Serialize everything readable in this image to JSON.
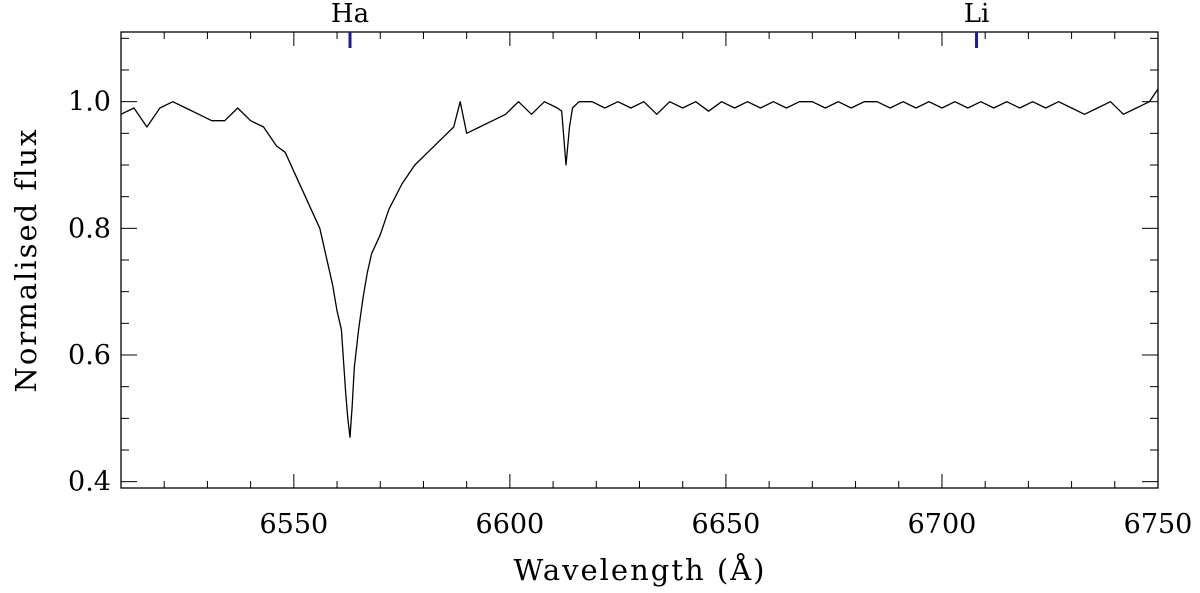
{
  "chart_data": {
    "type": "line",
    "title": "",
    "xlabel": "Wavelength (Å)",
    "ylabel": "Normalised flux",
    "xlim": [
      6510,
      6750
    ],
    "ylim": [
      0.39,
      1.11
    ],
    "x_ticks": [
      6550,
      6600,
      6650,
      6700,
      6750
    ],
    "x_tick_labels": [
      "6550",
      "6600",
      "6650",
      "6700",
      "6750"
    ],
    "x_minor_step": 10,
    "y_ticks": [
      0.4,
      0.6,
      0.8,
      1.0
    ],
    "y_tick_labels": [
      "0.4",
      "0.6",
      "0.8",
      "1.0"
    ],
    "y_minor_step": 0.05,
    "grid": false,
    "line_color": "#000000",
    "marker_color": "#1a1aa6",
    "line_markers": [
      {
        "label": "Ha",
        "x": 6563
      },
      {
        "label": "Li",
        "x": 6708
      }
    ],
    "series": [
      {
        "x": [
          6510,
          6513,
          6516,
          6519,
          6522,
          6525,
          6528,
          6531,
          6534,
          6537,
          6540,
          6543,
          6546,
          6548,
          6550,
          6552,
          6554,
          6556,
          6557,
          6558,
          6559,
          6560,
          6561,
          6562,
          6562.5,
          6563,
          6563.5,
          6564,
          6565,
          6566,
          6567,
          6568,
          6570,
          6572,
          6575,
          6578,
          6581,
          6584,
          6587,
          6588.5,
          6590,
          6593,
          6596,
          6599,
          6602,
          6605,
          6608,
          6611,
          6612,
          6613,
          6613.8,
          6614.5,
          6616,
          6619,
          6622,
          6625,
          6628,
          6631,
          6634,
          6637,
          6640,
          6643,
          6646,
          6649,
          6652,
          6655,
          6658,
          6661,
          6664,
          6667,
          6670,
          6673,
          6676,
          6679,
          6682,
          6685,
          6688,
          6691,
          6694,
          6697,
          6700,
          6703,
          6706,
          6709,
          6712,
          6715,
          6718,
          6721,
          6724,
          6727,
          6730,
          6733,
          6736,
          6739,
          6742,
          6745,
          6748,
          6750
        ],
        "y": [
          0.98,
          0.99,
          0.96,
          0.99,
          1.0,
          0.99,
          0.98,
          0.97,
          0.97,
          0.99,
          0.97,
          0.96,
          0.93,
          0.92,
          0.89,
          0.86,
          0.83,
          0.8,
          0.77,
          0.74,
          0.71,
          0.67,
          0.64,
          0.54,
          0.5,
          0.47,
          0.52,
          0.58,
          0.64,
          0.69,
          0.73,
          0.76,
          0.79,
          0.83,
          0.87,
          0.9,
          0.92,
          0.94,
          0.96,
          1.0,
          0.95,
          0.96,
          0.97,
          0.98,
          1.0,
          0.98,
          1.0,
          0.99,
          0.985,
          0.9,
          0.96,
          0.99,
          1.0,
          1.0,
          0.99,
          1.0,
          0.99,
          1.0,
          0.98,
          1.0,
          0.99,
          1.0,
          0.985,
          1.0,
          0.99,
          1.0,
          0.99,
          1.0,
          0.99,
          1.0,
          1.0,
          0.99,
          1.0,
          0.99,
          1.0,
          1.0,
          0.99,
          1.0,
          0.99,
          1.0,
          0.99,
          1.0,
          0.99,
          1.0,
          0.99,
          1.0,
          0.99,
          1.0,
          0.99,
          1.0,
          0.99,
          0.98,
          0.99,
          1.0,
          0.98,
          0.99,
          1.0,
          1.02
        ]
      }
    ]
  }
}
